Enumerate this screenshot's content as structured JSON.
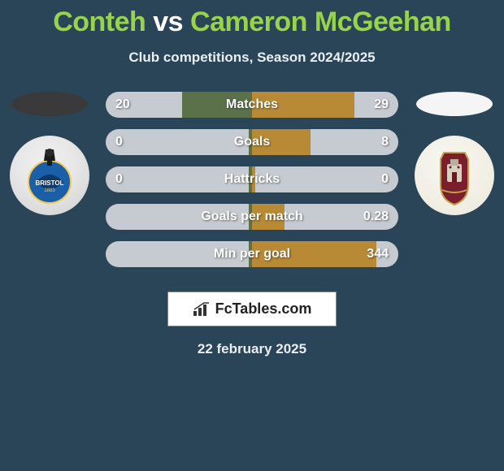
{
  "title_html_parts": {
    "p1": "Conteh",
    "vs": " vs ",
    "p2": "Cameron McGeehan"
  },
  "title_colors": {
    "p1": "#98d44a",
    "vs": "#ffffff",
    "p2": "#98d44a"
  },
  "subtitle": "Club competitions, Season 2024/2025",
  "left_color": "#3a3a3a",
  "right_color": "#f5f5f5",
  "bar_left_color": "#5b714a",
  "bar_right_color": "#b98a36",
  "rows": [
    {
      "label": "Matches",
      "left": "20",
      "right": "29",
      "left_fill": 0.48,
      "right_fill": 0.7
    },
    {
      "label": "Goals",
      "left": "0",
      "right": "8",
      "left_fill": 0.02,
      "right_fill": 0.4
    },
    {
      "label": "Hattricks",
      "left": "0",
      "right": "0",
      "left_fill": 0.02,
      "right_fill": 0.02
    },
    {
      "label": "Goals per match",
      "left": "",
      "right": "0.28",
      "left_fill": 0.02,
      "right_fill": 0.22
    },
    {
      "label": "Min per goal",
      "left": "",
      "right": "344",
      "left_fill": 0.02,
      "right_fill": 0.85
    }
  ],
  "brand": "FcTables.com",
  "date": "22 february 2025"
}
